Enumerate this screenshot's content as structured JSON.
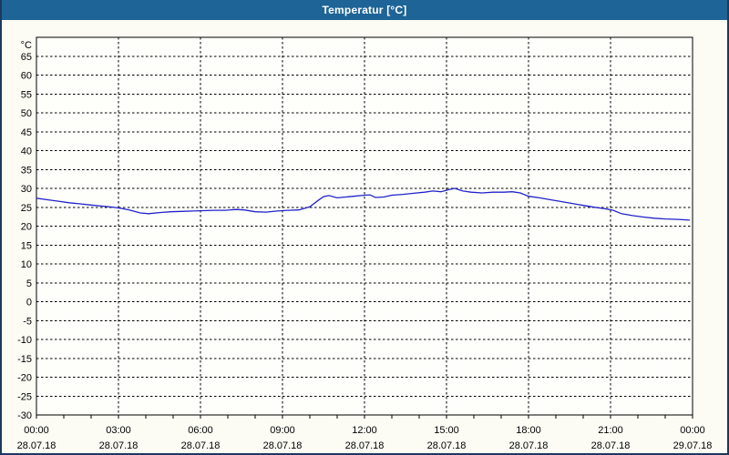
{
  "window": {
    "title": "Temperatur [°C]"
  },
  "colors": {
    "titlebar_bg": "#1e6496",
    "titlebar_text": "#ffffff",
    "window_border": "#1a3a5c",
    "window_bg": "#fcfcf5",
    "plot_bg": "#fefefa",
    "grid": "#000000",
    "series_line": "#2222cc"
  },
  "chart_data": {
    "type": "line",
    "title": "Temperatur [°C]",
    "xlabel": "",
    "ylabel": "°C",
    "ylim": [
      -30,
      70
    ],
    "ytick_step": 5,
    "xlim_hours": [
      0,
      24
    ],
    "minor_x_tick_every_hours": 1,
    "grid": true,
    "legend_position": "none",
    "x_ticks": [
      {
        "hour": 0,
        "time": "00:00",
        "date": "28.07.18"
      },
      {
        "hour": 3,
        "time": "03:00",
        "date": "28.07.18"
      },
      {
        "hour": 6,
        "time": "06:00",
        "date": "28.07.18"
      },
      {
        "hour": 9,
        "time": "09:00",
        "date": "28.07.18"
      },
      {
        "hour": 12,
        "time": "12:00",
        "date": "28.07.18"
      },
      {
        "hour": 15,
        "time": "15:00",
        "date": "28.07.18"
      },
      {
        "hour": 18,
        "time": "18:00",
        "date": "28.07.18"
      },
      {
        "hour": 21,
        "time": "21:00",
        "date": "28.07.18"
      },
      {
        "hour": 24,
        "time": "00:00",
        "date": "29.07.18"
      }
    ],
    "series": [
      {
        "name": "Temperatur",
        "unit": "°C",
        "color": "#2222cc",
        "points": [
          [
            0.0,
            27.4
          ],
          [
            0.4,
            27.0
          ],
          [
            0.8,
            26.6
          ],
          [
            1.2,
            26.2
          ],
          [
            1.6,
            25.9
          ],
          [
            2.0,
            25.6
          ],
          [
            2.4,
            25.3
          ],
          [
            2.8,
            25.0
          ],
          [
            3.1,
            24.7
          ],
          [
            3.4,
            24.3
          ],
          [
            3.8,
            23.5
          ],
          [
            4.1,
            23.3
          ],
          [
            4.5,
            23.6
          ],
          [
            4.9,
            23.8
          ],
          [
            5.3,
            23.9
          ],
          [
            5.7,
            24.0
          ],
          [
            6.1,
            24.1
          ],
          [
            6.5,
            24.2
          ],
          [
            6.9,
            24.2
          ],
          [
            7.3,
            24.4
          ],
          [
            7.6,
            24.3
          ],
          [
            8.0,
            23.8
          ],
          [
            8.4,
            23.7
          ],
          [
            8.8,
            24.0
          ],
          [
            9.2,
            24.2
          ],
          [
            9.6,
            24.3
          ],
          [
            10.0,
            25.1
          ],
          [
            10.3,
            26.8
          ],
          [
            10.5,
            27.8
          ],
          [
            10.7,
            28.1
          ],
          [
            11.0,
            27.5
          ],
          [
            11.3,
            27.7
          ],
          [
            11.6,
            27.9
          ],
          [
            12.0,
            28.2
          ],
          [
            12.2,
            28.3
          ],
          [
            12.4,
            27.6
          ],
          [
            12.7,
            27.7
          ],
          [
            13.0,
            28.2
          ],
          [
            13.4,
            28.4
          ],
          [
            13.8,
            28.7
          ],
          [
            14.2,
            29.0
          ],
          [
            14.5,
            29.3
          ],
          [
            14.8,
            29.1
          ],
          [
            15.1,
            29.7
          ],
          [
            15.3,
            30.0
          ],
          [
            15.6,
            29.3
          ],
          [
            15.9,
            29.0
          ],
          [
            16.3,
            28.8
          ],
          [
            16.7,
            29.0
          ],
          [
            17.1,
            29.0
          ],
          [
            17.4,
            29.1
          ],
          [
            17.7,
            28.8
          ],
          [
            18.0,
            27.9
          ],
          [
            18.4,
            27.5
          ],
          [
            18.8,
            27.0
          ],
          [
            19.2,
            26.5
          ],
          [
            19.6,
            26.0
          ],
          [
            20.0,
            25.5
          ],
          [
            20.4,
            25.0
          ],
          [
            20.8,
            24.6
          ],
          [
            21.1,
            24.2
          ],
          [
            21.4,
            23.3
          ],
          [
            21.8,
            22.8
          ],
          [
            22.2,
            22.4
          ],
          [
            22.6,
            22.1
          ],
          [
            23.0,
            21.9
          ],
          [
            23.4,
            21.8
          ],
          [
            23.9,
            21.6
          ]
        ]
      }
    ]
  }
}
